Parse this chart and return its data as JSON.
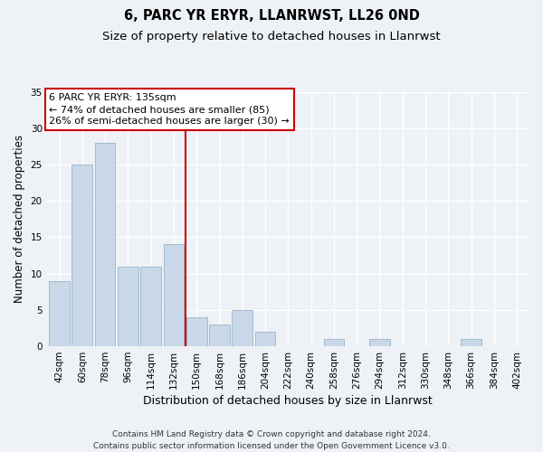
{
  "title": "6, PARC YR ERYR, LLANRWST, LL26 0ND",
  "subtitle": "Size of property relative to detached houses in Llanrwst",
  "xlabel": "Distribution of detached houses by size in Llanrwst",
  "ylabel": "Number of detached properties",
  "categories": [
    "42sqm",
    "60sqm",
    "78sqm",
    "96sqm",
    "114sqm",
    "132sqm",
    "150sqm",
    "168sqm",
    "186sqm",
    "204sqm",
    "222sqm",
    "240sqm",
    "258sqm",
    "276sqm",
    "294sqm",
    "312sqm",
    "330sqm",
    "348sqm",
    "366sqm",
    "384sqm",
    "402sqm"
  ],
  "values": [
    9,
    25,
    28,
    11,
    11,
    14,
    4,
    3,
    5,
    2,
    0,
    0,
    1,
    0,
    1,
    0,
    0,
    0,
    1,
    0,
    0
  ],
  "bar_color": "#c8d8e8",
  "bar_edge_color": "#9ab4c8",
  "vline_x_index": 5.5,
  "vline_color": "#cc0000",
  "annotation_line1": "6 PARC YR ERYR: 135sqm",
  "annotation_line2": "← 74% of detached houses are smaller (85)",
  "annotation_line3": "26% of semi-detached houses are larger (30) →",
  "annotation_box_edgecolor": "#cc0000",
  "ylim": [
    0,
    35
  ],
  "yticks": [
    0,
    5,
    10,
    15,
    20,
    25,
    30,
    35
  ],
  "footnote_line1": "Contains HM Land Registry data © Crown copyright and database right 2024.",
  "footnote_line2": "Contains public sector information licensed under the Open Government Licence v3.0.",
  "fig_facecolor": "#eef2f6",
  "ax_facecolor": "#eef2f6",
  "grid_color": "#ffffff",
  "title_fontsize": 10.5,
  "subtitle_fontsize": 9.5,
  "xlabel_fontsize": 9,
  "ylabel_fontsize": 8.5,
  "tick_fontsize": 7.5,
  "annotation_fontsize": 8,
  "footnote_fontsize": 6.5
}
